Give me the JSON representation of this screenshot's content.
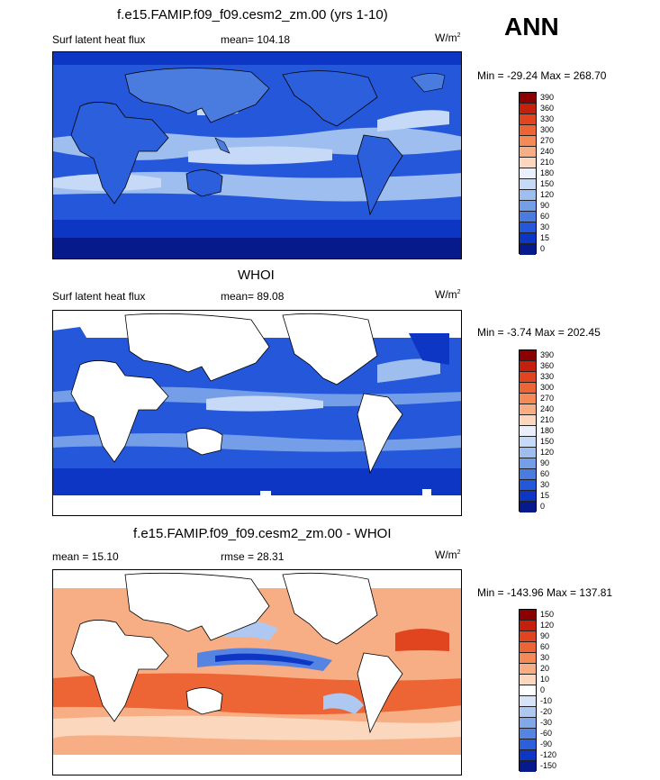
{
  "season": "ANN",
  "panels": [
    {
      "title": "f.e15.FAMIP.f09_f09.cesm2_zm.00 (yrs 1-10)",
      "left_label": "Surf latent heat flux",
      "center_label": "mean= 104.18",
      "units": "W/m",
      "units_sup": "2",
      "minmax": "Min = -29.24 Max = 268.70",
      "colorbar_levels": [
        "390",
        "360",
        "330",
        "300",
        "270",
        "240",
        "210",
        "180",
        "150",
        "120",
        "90",
        "60",
        "30",
        "15",
        "0"
      ],
      "colorbar_colors": [
        "#8b0000",
        "#c4200c",
        "#e0451f",
        "#ee6535",
        "#f58a57",
        "#f8ae84",
        "#fbd7bd",
        "#e9f0fb",
        "#c6d9f6",
        "#9fbef0",
        "#759ee8",
        "#4a7ce0",
        "#2457da",
        "#0d36c4",
        "#061a8c"
      ]
    },
    {
      "title": "WHOI",
      "left_label": "Surf latent heat flux",
      "center_label": "mean=  89.08",
      "units": "W/m",
      "units_sup": "2",
      "minmax": "Min =  -3.74 Max = 202.45",
      "colorbar_levels": [
        "390",
        "360",
        "330",
        "300",
        "270",
        "240",
        "210",
        "180",
        "150",
        "120",
        "90",
        "60",
        "30",
        "15",
        "0"
      ],
      "colorbar_colors": [
        "#8b0000",
        "#c4200c",
        "#e0451f",
        "#ee6535",
        "#f58a57",
        "#f8ae84",
        "#fbd7bd",
        "#e9f0fb",
        "#c6d9f6",
        "#9fbef0",
        "#759ee8",
        "#4a7ce0",
        "#2457da",
        "#0d36c4",
        "#061a8c"
      ]
    },
    {
      "title": "f.e15.FAMIP.f09_f09.cesm2_zm.00 - WHOI",
      "left_label": "mean =  15.10",
      "center_label": "rmse =  28.31",
      "units": "W/m",
      "units_sup": "2",
      "minmax": "Min = -143.96 Max = 137.81",
      "colorbar_levels": [
        "150",
        "120",
        "90",
        "60",
        "30",
        "20",
        "10",
        "0",
        "-10",
        "-20",
        "-30",
        "-60",
        "-90",
        "-120",
        "-150"
      ],
      "colorbar_colors": [
        "#8b0000",
        "#c4200c",
        "#e0451f",
        "#ee6535",
        "#f58a57",
        "#f8ae84",
        "#fbd7bd",
        "#ffffff",
        "#d7e4f8",
        "#aec8f2",
        "#82a8ea",
        "#5584e2",
        "#2b5fdb",
        "#0d36c4",
        "#061a8c"
      ]
    }
  ]
}
